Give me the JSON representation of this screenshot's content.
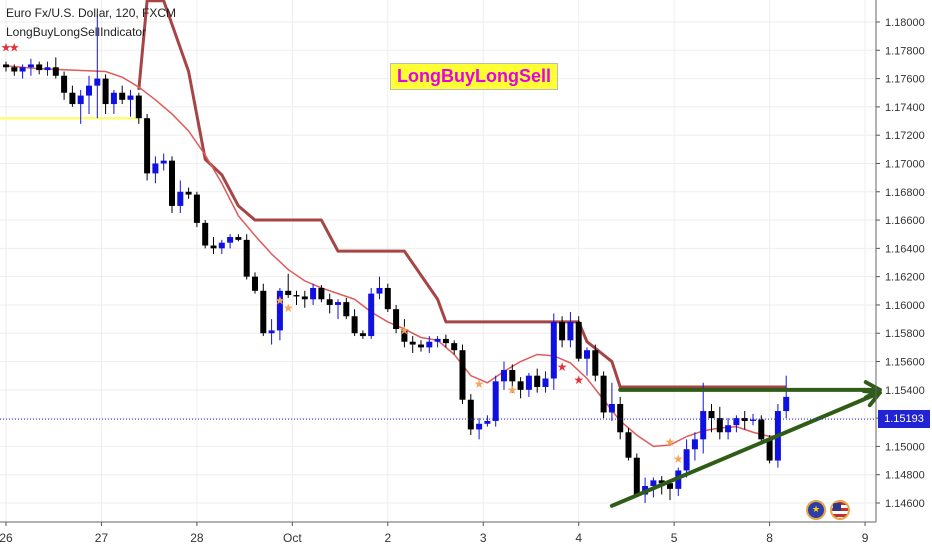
{
  "header": {
    "symbol_title": "Euro Fx/U.S. Dollar, 120, FXCM",
    "indicator_name": "LongBuyLongSellIndicator"
  },
  "watermark_text": "LongBuyLongSell",
  "current_price": "1.15193",
  "colors": {
    "bull_candle": "#1010e0",
    "bear_candle": "#000000",
    "fast_line": "#e05a5a",
    "trail_stop": "#a54545",
    "trend_arrow": "#2f5d17",
    "support_line": "#ffff55",
    "price_line": "#2323d6",
    "grid": "#eeeeee",
    "watermark_bg": "#ffff33",
    "watermark_text": "#e600e6"
  },
  "chart_data": {
    "type": "candlestick",
    "title": "Euro Fx/U.S. Dollar, 120, FXCM",
    "x_tick_labels": [
      "26",
      "27",
      "28",
      "Oct",
      "2",
      "3",
      "4",
      "5",
      "8",
      "9"
    ],
    "y_tick_labels": [
      "1.18000",
      "1.17800",
      "1.17600",
      "1.17400",
      "1.17200",
      "1.17000",
      "1.16800",
      "1.16600",
      "1.16400",
      "1.16200",
      "1.16000",
      "1.15800",
      "1.15600",
      "1.15400",
      "1.15200",
      "1.15000",
      "1.14800",
      "1.14600"
    ],
    "ylim": [
      1.1449,
      1.1818
    ],
    "x_range_bars": [
      0,
      94
    ],
    "x_tick_bars": [
      0,
      11.5,
      23,
      34.5,
      46,
      57.5,
      69,
      80.5,
      92,
      103.5
    ],
    "grid": true,
    "candles": [
      [
        1.177,
        1.1772,
        1.1765,
        1.1768
      ],
      [
        1.1768,
        1.177,
        1.1762,
        1.1765
      ],
      [
        1.1765,
        1.177,
        1.176,
        1.1768
      ],
      [
        1.1768,
        1.1774,
        1.1762,
        1.177
      ],
      [
        1.177,
        1.1772,
        1.1763,
        1.1766
      ],
      [
        1.1766,
        1.1772,
        1.1762,
        1.1768
      ],
      [
        1.1768,
        1.1775,
        1.176,
        1.1762
      ],
      [
        1.1762,
        1.1765,
        1.1745,
        1.175
      ],
      [
        1.175,
        1.1755,
        1.174,
        1.1742
      ],
      [
        1.1742,
        1.1752,
        1.1728,
        1.1748
      ],
      [
        1.1748,
        1.1762,
        1.1735,
        1.1755
      ],
      [
        1.1755,
        1.1805,
        1.1732,
        1.176
      ],
      [
        1.176,
        1.1763,
        1.1735,
        1.1742
      ],
      [
        1.1742,
        1.1752,
        1.1735,
        1.175
      ],
      [
        1.175,
        1.1755,
        1.1742,
        1.1745
      ],
      [
        1.1745,
        1.1752,
        1.1733,
        1.1748
      ],
      [
        1.1748,
        1.175,
        1.1728,
        1.1732
      ],
      [
        1.1732,
        1.1735,
        1.1688,
        1.1693
      ],
      [
        1.1693,
        1.1705,
        1.1686,
        1.17
      ],
      [
        1.17,
        1.1707,
        1.1695,
        1.1702
      ],
      [
        1.1702,
        1.1705,
        1.1665,
        1.167
      ],
      [
        1.167,
        1.1688,
        1.1665,
        1.168
      ],
      [
        1.168,
        1.1683,
        1.1675,
        1.1678
      ],
      [
        1.1678,
        1.168,
        1.1655,
        1.1658
      ],
      [
        1.1658,
        1.166,
        1.164,
        1.1642
      ],
      [
        1.1642,
        1.1648,
        1.1636,
        1.164
      ],
      [
        1.164,
        1.1646,
        1.1636,
        1.1644
      ],
      [
        1.1644,
        1.165,
        1.164,
        1.1648
      ],
      [
        1.1648,
        1.165,
        1.1645,
        1.1646
      ],
      [
        1.1646,
        1.165,
        1.1618,
        1.162
      ],
      [
        1.162,
        1.1623,
        1.1608,
        1.161
      ],
      [
        1.161,
        1.1615,
        1.1578,
        1.158
      ],
      [
        1.158,
        1.159,
        1.1572,
        1.1582
      ],
      [
        1.1582,
        1.1612,
        1.1575,
        1.161
      ],
      [
        1.161,
        1.1622,
        1.1605,
        1.1607
      ],
      [
        1.1607,
        1.161,
        1.16,
        1.1606
      ],
      [
        1.1606,
        1.161,
        1.1598,
        1.1604
      ],
      [
        1.1604,
        1.1615,
        1.16,
        1.1612
      ],
      [
        1.1612,
        1.1614,
        1.1602,
        1.1604
      ],
      [
        1.1604,
        1.1608,
        1.1594,
        1.16
      ],
      [
        1.16,
        1.1604,
        1.159,
        1.1602
      ],
      [
        1.1602,
        1.1605,
        1.159,
        1.1592
      ],
      [
        1.1592,
        1.1597,
        1.1578,
        1.158
      ],
      [
        1.158,
        1.1582,
        1.1576,
        1.1578
      ],
      [
        1.1578,
        1.1612,
        1.1576,
        1.1608
      ],
      [
        1.1608,
        1.162,
        1.1604,
        1.1612
      ],
      [
        1.1612,
        1.1615,
        1.1595,
        1.1597
      ],
      [
        1.1597,
        1.16,
        1.158,
        1.1583
      ],
      [
        1.1583,
        1.159,
        1.157,
        1.1574
      ],
      [
        1.1574,
        1.1578,
        1.1566,
        1.1572
      ],
      [
        1.1572,
        1.1575,
        1.1567,
        1.157
      ],
      [
        1.157,
        1.1578,
        1.1566,
        1.1574
      ],
      [
        1.1574,
        1.1578,
        1.157,
        1.1576
      ],
      [
        1.1576,
        1.1579,
        1.157,
        1.1573
      ],
      [
        1.1573,
        1.1575,
        1.1565,
        1.1568
      ],
      [
        1.1568,
        1.1572,
        1.153,
        1.1533
      ],
      [
        1.1533,
        1.1537,
        1.1508,
        1.1512
      ],
      [
        1.1512,
        1.152,
        1.1505,
        1.1516
      ],
      [
        1.1516,
        1.1522,
        1.1514,
        1.1518
      ],
      [
        1.1518,
        1.155,
        1.1514,
        1.1546
      ],
      [
        1.1546,
        1.156,
        1.154,
        1.1554
      ],
      [
        1.1554,
        1.1558,
        1.1538,
        1.1546
      ],
      [
        1.1546,
        1.1549,
        1.1534,
        1.154
      ],
      [
        1.154,
        1.1552,
        1.1535,
        1.155
      ],
      [
        1.155,
        1.1555,
        1.1538,
        1.1542
      ],
      [
        1.1542,
        1.1553,
        1.1538,
        1.1548
      ],
      [
        1.1548,
        1.1594,
        1.154,
        1.1588
      ],
      [
        1.1588,
        1.1592,
        1.157,
        1.1575
      ],
      [
        1.1575,
        1.1595,
        1.157,
        1.1588
      ],
      [
        1.1588,
        1.1592,
        1.156,
        1.1562
      ],
      [
        1.1562,
        1.157,
        1.155,
        1.1568
      ],
      [
        1.1568,
        1.1572,
        1.1546,
        1.155
      ],
      [
        1.155,
        1.1553,
        1.152,
        1.1524
      ],
      [
        1.1524,
        1.1545,
        1.1518,
        1.153
      ],
      [
        1.153,
        1.1535,
        1.1505,
        1.151
      ],
      [
        1.151,
        1.1513,
        1.149,
        1.1492
      ],
      [
        1.1492,
        1.1495,
        1.1464,
        1.1466
      ],
      [
        1.1466,
        1.1478,
        1.146,
        1.1472
      ],
      [
        1.1472,
        1.1478,
        1.1464,
        1.1476
      ],
      [
        1.1476,
        1.1479,
        1.1466,
        1.1474
      ],
      [
        1.1474,
        1.1476,
        1.1462,
        1.147
      ],
      [
        1.147,
        1.1485,
        1.1465,
        1.1483
      ],
      [
        1.1483,
        1.1505,
        1.1478,
        1.1498
      ],
      [
        1.1498,
        1.151,
        1.149,
        1.1505
      ],
      [
        1.1505,
        1.1545,
        1.1495,
        1.1525
      ],
      [
        1.1525,
        1.153,
        1.151,
        1.152
      ],
      [
        1.152,
        1.1528,
        1.1505,
        1.151
      ],
      [
        1.151,
        1.152,
        1.1505,
        1.1515
      ],
      [
        1.1515,
        1.1522,
        1.151,
        1.152
      ],
      [
        1.152,
        1.1525,
        1.1512,
        1.1518
      ],
      [
        1.1518,
        1.1523,
        1.1515,
        1.1519
      ],
      [
        1.1519,
        1.1522,
        1.1502,
        1.1505
      ],
      [
        1.1505,
        1.1508,
        1.1488,
        1.149
      ],
      [
        1.149,
        1.153,
        1.1485,
        1.1525
      ],
      [
        1.1525,
        1.155,
        1.152,
        1.1535
      ]
    ],
    "fast_line": [
      [
        0,
        1.1769
      ],
      [
        4,
        1.1767
      ],
      [
        8,
        1.1766
      ],
      [
        12,
        1.1765
      ],
      [
        14,
        1.1761
      ],
      [
        16,
        1.1754
      ],
      [
        18,
        1.1745
      ],
      [
        20,
        1.1735
      ],
      [
        22,
        1.1723
      ],
      [
        24,
        1.1706
      ],
      [
        26,
        1.1686
      ],
      [
        28,
        1.1663
      ],
      [
        30,
        1.1649
      ],
      [
        32,
        1.1636
      ],
      [
        34,
        1.1625
      ],
      [
        36,
        1.1617
      ],
      [
        38,
        1.1612
      ],
      [
        40,
        1.1608
      ],
      [
        42,
        1.1604
      ],
      [
        44,
        1.1595
      ],
      [
        46,
        1.1588
      ],
      [
        48,
        1.1583
      ],
      [
        50,
        1.1577
      ],
      [
        52,
        1.1575
      ],
      [
        54,
        1.1565
      ],
      [
        56,
        1.155
      ],
      [
        58,
        1.1545
      ],
      [
        60,
        1.1553
      ],
      [
        62,
        1.156
      ],
      [
        64,
        1.1565
      ],
      [
        66,
        1.1564
      ],
      [
        68,
        1.1559
      ],
      [
        70,
        1.1548
      ],
      [
        72,
        1.1533
      ],
      [
        74,
        1.1518
      ],
      [
        76,
        1.1508
      ],
      [
        78,
        1.15
      ],
      [
        80,
        1.1501
      ],
      [
        82,
        1.1507
      ],
      [
        84,
        1.1511
      ],
      [
        86,
        1.1513
      ],
      [
        88,
        1.1514
      ],
      [
        90,
        1.151
      ],
      [
        92,
        1.1507
      ],
      [
        94,
        1.1509
      ]
    ],
    "trail_stop": [
      [
        16,
        1.1752
      ],
      [
        17,
        1.1815
      ],
      [
        19,
        1.1815
      ],
      [
        22,
        1.1765
      ],
      [
        24,
        1.1703
      ],
      [
        26,
        1.1692
      ],
      [
        28,
        1.167
      ],
      [
        30,
        1.166
      ],
      [
        38,
        1.166
      ],
      [
        40,
        1.1638
      ],
      [
        48,
        1.1638
      ],
      [
        52,
        1.1604
      ],
      [
        53,
        1.1588
      ],
      [
        69,
        1.1588
      ],
      [
        70,
        1.1574
      ],
      [
        73,
        1.156
      ],
      [
        74,
        1.1542
      ],
      [
        94,
        1.1542
      ]
    ],
    "sell_stars": [
      [
        0,
        1.1782
      ],
      [
        1,
        1.1782
      ],
      [
        67,
        1.1556
      ],
      [
        69,
        1.1547
      ]
    ],
    "buy_stars": [
      [
        33,
        1.1603
      ],
      [
        34,
        1.1598
      ],
      [
        48,
        1.1582
      ],
      [
        57,
        1.1544
      ],
      [
        61,
        1.154
      ],
      [
        80,
        1.1503
      ],
      [
        81,
        1.1491
      ]
    ],
    "support_segment": [
      [
        0,
        1.1732
      ],
      [
        16,
        1.1732
      ]
    ],
    "resistance_arrow": [
      [
        74,
        1.154
      ],
      [
        106,
        1.154
      ]
    ],
    "trend_arrow": [
      [
        73,
        1.1458
      ],
      [
        106,
        1.1538
      ]
    ]
  }
}
